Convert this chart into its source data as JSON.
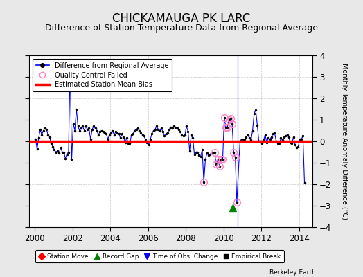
{
  "title": "CHICKAMAUGA PK LARC",
  "subtitle": "Difference of Station Temperature Data from Regional Average",
  "ylabel": "Monthly Temperature Anomaly Difference (°C)",
  "xlabel_years": [
    2000,
    2002,
    2004,
    2006,
    2008,
    2010,
    2012,
    2014
  ],
  "ylim": [
    -4,
    4
  ],
  "xlim_start": 1999.7,
  "xlim_end": 2014.7,
  "bg_color": "#e8e8e8",
  "plot_bg_color": "#ffffff",
  "bias_value_seg1": 0.0,
  "bias_value_seg2": 0.0,
  "bias_break_x": 2010.75,
  "vertical_line_x": 2010.75,
  "record_gap_x": 2010.5,
  "record_gap_y": -3.1,
  "title_fontsize": 12,
  "subtitle_fontsize": 9,
  "data": [
    [
      2000.042,
      0.1
    ],
    [
      2000.125,
      -0.35
    ],
    [
      2000.208,
      0.15
    ],
    [
      2000.292,
      0.55
    ],
    [
      2000.375,
      0.3
    ],
    [
      2000.458,
      0.5
    ],
    [
      2000.542,
      0.6
    ],
    [
      2000.625,
      0.55
    ],
    [
      2000.708,
      0.3
    ],
    [
      2000.792,
      0.2
    ],
    [
      2000.875,
      -0.1
    ],
    [
      2000.958,
      -0.25
    ],
    [
      2001.042,
      -0.4
    ],
    [
      2001.125,
      -0.5
    ],
    [
      2001.208,
      -0.45
    ],
    [
      2001.292,
      -0.55
    ],
    [
      2001.375,
      -0.3
    ],
    [
      2001.458,
      -0.5
    ],
    [
      2001.542,
      -0.5
    ],
    [
      2001.625,
      -0.8
    ],
    [
      2001.708,
      -0.6
    ],
    [
      2001.792,
      -0.5
    ],
    [
      2001.875,
      3.5
    ],
    [
      2001.958,
      -0.85
    ],
    [
      2002.042,
      0.8
    ],
    [
      2002.125,
      0.5
    ],
    [
      2002.208,
      1.5
    ],
    [
      2002.292,
      0.7
    ],
    [
      2002.375,
      0.5
    ],
    [
      2002.458,
      0.6
    ],
    [
      2002.542,
      0.7
    ],
    [
      2002.625,
      0.5
    ],
    [
      2002.708,
      0.7
    ],
    [
      2002.792,
      0.55
    ],
    [
      2002.875,
      0.6
    ],
    [
      2002.958,
      0.1
    ],
    [
      2003.042,
      0.55
    ],
    [
      2003.125,
      0.7
    ],
    [
      2003.208,
      0.6
    ],
    [
      2003.292,
      0.5
    ],
    [
      2003.375,
      0.3
    ],
    [
      2003.458,
      0.45
    ],
    [
      2003.542,
      0.5
    ],
    [
      2003.625,
      0.45
    ],
    [
      2003.708,
      0.4
    ],
    [
      2003.792,
      0.35
    ],
    [
      2003.875,
      0.1
    ],
    [
      2003.958,
      0.3
    ],
    [
      2004.042,
      0.4
    ],
    [
      2004.125,
      0.5
    ],
    [
      2004.208,
      0.3
    ],
    [
      2004.292,
      0.45
    ],
    [
      2004.375,
      0.4
    ],
    [
      2004.458,
      0.35
    ],
    [
      2004.542,
      0.15
    ],
    [
      2004.625,
      0.35
    ],
    [
      2004.708,
      0.2
    ],
    [
      2004.792,
      -0.05
    ],
    [
      2004.875,
      0.15
    ],
    [
      2004.958,
      -0.1
    ],
    [
      2005.042,
      -0.1
    ],
    [
      2005.125,
      0.3
    ],
    [
      2005.208,
      0.35
    ],
    [
      2005.292,
      0.5
    ],
    [
      2005.375,
      0.55
    ],
    [
      2005.458,
      0.6
    ],
    [
      2005.542,
      0.5
    ],
    [
      2005.625,
      0.4
    ],
    [
      2005.708,
      0.3
    ],
    [
      2005.792,
      0.25
    ],
    [
      2005.875,
      0.05
    ],
    [
      2005.958,
      -0.05
    ],
    [
      2006.042,
      -0.15
    ],
    [
      2006.125,
      0.1
    ],
    [
      2006.208,
      0.35
    ],
    [
      2006.292,
      0.5
    ],
    [
      2006.375,
      0.55
    ],
    [
      2006.458,
      0.7
    ],
    [
      2006.542,
      0.55
    ],
    [
      2006.625,
      0.5
    ],
    [
      2006.708,
      0.6
    ],
    [
      2006.792,
      0.45
    ],
    [
      2006.875,
      0.25
    ],
    [
      2006.958,
      0.35
    ],
    [
      2007.042,
      0.4
    ],
    [
      2007.125,
      0.55
    ],
    [
      2007.208,
      0.65
    ],
    [
      2007.292,
      0.6
    ],
    [
      2007.375,
      0.7
    ],
    [
      2007.458,
      0.65
    ],
    [
      2007.542,
      0.6
    ],
    [
      2007.625,
      0.55
    ],
    [
      2007.708,
      0.45
    ],
    [
      2007.792,
      0.3
    ],
    [
      2007.875,
      0.25
    ],
    [
      2007.958,
      0.3
    ],
    [
      2008.042,
      0.7
    ],
    [
      2008.125,
      0.45
    ],
    [
      2008.208,
      -0.45
    ],
    [
      2008.292,
      0.3
    ],
    [
      2008.375,
      0.15
    ],
    [
      2008.458,
      -0.6
    ],
    [
      2008.542,
      -0.5
    ],
    [
      2008.625,
      -0.5
    ],
    [
      2008.708,
      -0.65
    ],
    [
      2008.792,
      -0.7
    ],
    [
      2008.875,
      -0.4
    ],
    [
      2008.958,
      -1.9
    ],
    [
      2009.042,
      -0.85
    ],
    [
      2009.125,
      -0.55
    ],
    [
      2009.208,
      -0.65
    ],
    [
      2009.292,
      -0.6
    ],
    [
      2009.375,
      -0.55
    ],
    [
      2009.458,
      -0.55
    ],
    [
      2009.542,
      -0.5
    ],
    [
      2009.625,
      -1.05
    ],
    [
      2009.708,
      -0.85
    ],
    [
      2009.792,
      -1.15
    ],
    [
      2009.875,
      -0.85
    ],
    [
      2009.958,
      -0.85
    ],
    [
      2010.042,
      1.1
    ],
    [
      2010.125,
      0.65
    ],
    [
      2010.208,
      0.65
    ],
    [
      2010.292,
      1.0
    ],
    [
      2010.375,
      1.05
    ],
    [
      2010.458,
      0.8
    ],
    [
      2010.542,
      -0.5
    ],
    [
      2010.625,
      -0.75
    ],
    [
      2010.708,
      -2.85
    ],
    [
      2010.875,
      0.0
    ],
    [
      2010.958,
      0.1
    ],
    [
      2011.042,
      0.05
    ],
    [
      2011.125,
      0.1
    ],
    [
      2011.208,
      0.2
    ],
    [
      2011.292,
      0.3
    ],
    [
      2011.375,
      0.15
    ],
    [
      2011.458,
      0.05
    ],
    [
      2011.542,
      0.5
    ],
    [
      2011.625,
      1.3
    ],
    [
      2011.708,
      1.45
    ],
    [
      2011.792,
      0.75
    ],
    [
      2011.875,
      0.0
    ],
    [
      2011.958,
      0.0
    ],
    [
      2012.042,
      -0.1
    ],
    [
      2012.125,
      0.05
    ],
    [
      2012.208,
      0.3
    ],
    [
      2012.292,
      -0.05
    ],
    [
      2012.375,
      0.15
    ],
    [
      2012.458,
      0.1
    ],
    [
      2012.542,
      0.2
    ],
    [
      2012.625,
      0.35
    ],
    [
      2012.708,
      0.4
    ],
    [
      2012.792,
      0.0
    ],
    [
      2012.875,
      -0.1
    ],
    [
      2012.958,
      -0.1
    ],
    [
      2013.042,
      0.15
    ],
    [
      2013.125,
      0.05
    ],
    [
      2013.208,
      0.2
    ],
    [
      2013.292,
      0.25
    ],
    [
      2013.375,
      0.3
    ],
    [
      2013.458,
      0.2
    ],
    [
      2013.542,
      -0.05
    ],
    [
      2013.625,
      -0.1
    ],
    [
      2013.708,
      0.2
    ],
    [
      2013.792,
      -0.15
    ],
    [
      2013.875,
      -0.3
    ],
    [
      2013.958,
      -0.25
    ],
    [
      2014.042,
      0.1
    ],
    [
      2014.125,
      0.1
    ],
    [
      2014.208,
      0.25
    ],
    [
      2014.292,
      -1.95
    ]
  ],
  "qc_failed": [
    [
      2008.958,
      -1.9
    ],
    [
      2009.542,
      -0.5
    ],
    [
      2009.625,
      -1.05
    ],
    [
      2009.708,
      -0.85
    ],
    [
      2009.792,
      -1.15
    ],
    [
      2009.875,
      -0.85
    ],
    [
      2009.958,
      -0.85
    ],
    [
      2010.042,
      1.1
    ],
    [
      2010.125,
      0.65
    ],
    [
      2010.208,
      0.65
    ],
    [
      2010.292,
      1.0
    ],
    [
      2010.375,
      1.05
    ],
    [
      2010.458,
      0.8
    ],
    [
      2010.542,
      -0.5
    ],
    [
      2010.625,
      -0.75
    ],
    [
      2010.708,
      -2.85
    ]
  ]
}
